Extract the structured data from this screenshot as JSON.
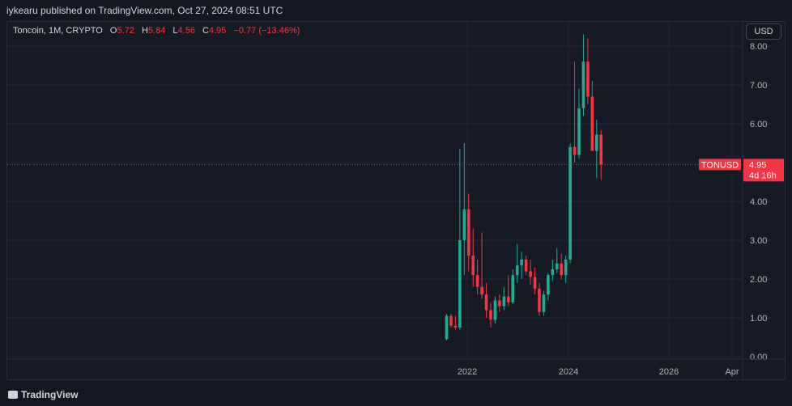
{
  "header": {
    "published": "iykearu published on TradingView.com, Oct 27, 2024 08:51 UTC"
  },
  "legend": {
    "symbol": "Toncoin, 1M, CRYPTO",
    "o_label": "O",
    "o": "5.72",
    "h_label": "H",
    "h": "5.84",
    "l_label": "L",
    "l": "4.56",
    "c_label": "C",
    "c": "4.95",
    "change": "−0.77 (−13.46%)"
  },
  "currency": "USD",
  "price_tag": {
    "symbol": "TONUSD",
    "price": "4.95",
    "countdown": "4d 16h"
  },
  "footer": {
    "brand": "TradingView"
  },
  "colors": {
    "up": "#22ab94",
    "down": "#f23645",
    "background": "#161a25",
    "grid": "#232735"
  },
  "chart_data": {
    "type": "candlestick",
    "title": "",
    "y_ticks": [
      "8.00",
      "7.00",
      "6.00",
      "5.00",
      "4.00",
      "3.00",
      "2.00",
      "1.00",
      "0.00"
    ],
    "x_ticks": [
      "2022",
      "2024",
      "2026",
      "Apr"
    ],
    "ylim": [
      0,
      8.3
    ],
    "last_price": 4.95,
    "candles": [
      {
        "o": 0.45,
        "h": 1.1,
        "l": 0.42,
        "c": 1.05
      },
      {
        "o": 1.05,
        "h": 1.1,
        "l": 0.75,
        "c": 0.8
      },
      {
        "o": 0.8,
        "h": 1.05,
        "l": 0.7,
        "c": 0.75
      },
      {
        "o": 0.75,
        "h": 5.35,
        "l": 0.7,
        "c": 3.0
      },
      {
        "o": 3.0,
        "h": 5.5,
        "l": 2.1,
        "c": 3.8
      },
      {
        "o": 3.8,
        "h": 4.2,
        "l": 2.2,
        "c": 2.6
      },
      {
        "o": 2.6,
        "h": 3.3,
        "l": 1.8,
        "c": 2.1
      },
      {
        "o": 2.1,
        "h": 2.5,
        "l": 1.6,
        "c": 1.8
      },
      {
        "o": 1.8,
        "h": 3.2,
        "l": 1.5,
        "c": 1.6
      },
      {
        "o": 1.6,
        "h": 1.9,
        "l": 1.0,
        "c": 1.2
      },
      {
        "o": 1.2,
        "h": 1.4,
        "l": 0.75,
        "c": 0.95
      },
      {
        "o": 0.95,
        "h": 1.55,
        "l": 0.85,
        "c": 1.45
      },
      {
        "o": 1.45,
        "h": 1.6,
        "l": 1.15,
        "c": 1.3
      },
      {
        "o": 1.3,
        "h": 1.8,
        "l": 1.2,
        "c": 1.55
      },
      {
        "o": 1.55,
        "h": 2.1,
        "l": 1.3,
        "c": 1.4
      },
      {
        "o": 1.4,
        "h": 2.25,
        "l": 1.35,
        "c": 2.1
      },
      {
        "o": 2.1,
        "h": 2.9,
        "l": 1.9,
        "c": 2.35
      },
      {
        "o": 2.35,
        "h": 2.7,
        "l": 2.0,
        "c": 2.5
      },
      {
        "o": 2.5,
        "h": 2.6,
        "l": 2.1,
        "c": 2.2
      },
      {
        "o": 2.2,
        "h": 2.5,
        "l": 1.85,
        "c": 2.05
      },
      {
        "o": 2.05,
        "h": 2.3,
        "l": 1.6,
        "c": 1.75
      },
      {
        "o": 1.75,
        "h": 1.9,
        "l": 1.05,
        "c": 1.15
      },
      {
        "o": 1.15,
        "h": 1.7,
        "l": 1.05,
        "c": 1.6
      },
      {
        "o": 1.6,
        "h": 2.15,
        "l": 1.45,
        "c": 2.1
      },
      {
        "o": 2.1,
        "h": 2.5,
        "l": 1.95,
        "c": 2.25
      },
      {
        "o": 2.25,
        "h": 2.8,
        "l": 2.15,
        "c": 2.4
      },
      {
        "o": 2.4,
        "h": 2.65,
        "l": 2.0,
        "c": 2.1
      },
      {
        "o": 2.1,
        "h": 2.6,
        "l": 1.9,
        "c": 2.5
      },
      {
        "o": 2.5,
        "h": 5.5,
        "l": 2.4,
        "c": 5.4
      },
      {
        "o": 5.4,
        "h": 7.6,
        "l": 5.0,
        "c": 5.2
      },
      {
        "o": 5.2,
        "h": 6.9,
        "l": 5.1,
        "c": 6.4
      },
      {
        "o": 6.4,
        "h": 8.3,
        "l": 6.2,
        "c": 7.6
      },
      {
        "o": 7.6,
        "h": 8.2,
        "l": 6.5,
        "c": 6.7
      },
      {
        "o": 6.7,
        "h": 7.1,
        "l": 5.3,
        "c": 5.3
      },
      {
        "o": 5.3,
        "h": 6.1,
        "l": 4.6,
        "c": 5.72
      },
      {
        "o": 5.72,
        "h": 5.84,
        "l": 4.56,
        "c": 4.95
      }
    ]
  }
}
